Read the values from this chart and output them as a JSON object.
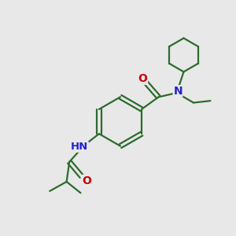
{
  "background_color": "#e8e8e8",
  "bond_color": "#2d6b2d",
  "N_color": "#2222cc",
  "O_color": "#cc0000",
  "line_width": 1.6,
  "font_size": 9.5,
  "figsize": [
    3.0,
    3.0
  ],
  "dpi": 100,
  "xlim": [
    0,
    10
  ],
  "ylim": [
    0,
    10
  ]
}
